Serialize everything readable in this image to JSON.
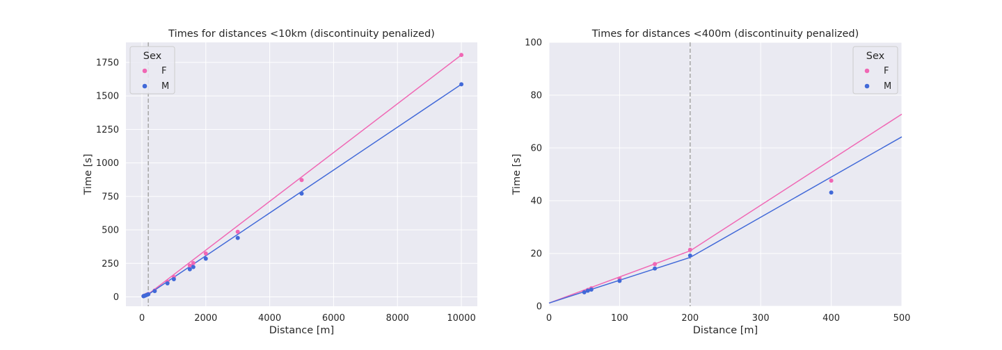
{
  "colors": {
    "F": "#f067b4",
    "M": "#4169d8"
  },
  "chart_data": [
    {
      "type": "scatter",
      "title": "Times for distances <10km (discontinuity penalized)",
      "xlabel": "Distance [m]",
      "ylabel": "Time [s]",
      "xlim": [
        -500,
        10500
      ],
      "ylim": [
        -70,
        1900
      ],
      "xticks": [
        0,
        2000,
        4000,
        6000,
        8000,
        10000
      ],
      "yticks": [
        0,
        250,
        500,
        750,
        1000,
        1250,
        1500,
        1750
      ],
      "vline_x": 200,
      "legend": {
        "title": "Sex",
        "entries": [
          "F",
          "M"
        ],
        "position": "top-left"
      },
      "series": [
        {
          "name": "F",
          "points": [
            [
              50,
              5.5
            ],
            [
              55,
              6.2
            ],
            [
              60,
              6.8
            ],
            [
              100,
              10.5
            ],
            [
              150,
              16
            ],
            [
              200,
              21.4
            ],
            [
              400,
              47.6
            ],
            [
              800,
              113
            ],
            [
              1000,
              148
            ],
            [
              1500,
              233
            ],
            [
              1609,
              252
            ],
            [
              2000,
              324
            ],
            [
              3000,
              486
            ],
            [
              5000,
              872
            ],
            [
              10000,
              1806
            ]
          ],
          "line": [
            [
              0,
              1.2
            ],
            [
              200,
              21
            ],
            [
              10000,
              1806
            ]
          ]
        },
        {
          "name": "M",
          "points": [
            [
              50,
              5.3
            ],
            [
              55,
              5.9
            ],
            [
              60,
              6.3
            ],
            [
              100,
              9.6
            ],
            [
              150,
              14.3
            ],
            [
              200,
              19.2
            ],
            [
              400,
              43.1
            ],
            [
              800,
              101
            ],
            [
              1000,
              132
            ],
            [
              1500,
              206
            ],
            [
              1609,
              223
            ],
            [
              2000,
              285
            ],
            [
              3000,
              440
            ],
            [
              5000,
              771
            ],
            [
              10000,
              1587
            ]
          ],
          "line": [
            [
              0,
              1.2
            ],
            [
              200,
              18.5
            ],
            [
              10000,
              1587
            ]
          ]
        }
      ]
    },
    {
      "type": "scatter",
      "title": "Times for distances <400m (discontinuity penalized)",
      "xlabel": "Distance [m]",
      "ylabel": "Time [s]",
      "xlim": [
        0,
        500
      ],
      "ylim": [
        0,
        100
      ],
      "xticks": [
        0,
        100,
        200,
        300,
        400,
        500
      ],
      "yticks": [
        0,
        20,
        40,
        60,
        80,
        100
      ],
      "vline_x": 200,
      "legend": {
        "title": "Sex",
        "entries": [
          "F",
          "M"
        ],
        "position": "top-right"
      },
      "series": [
        {
          "name": "F",
          "points": [
            [
              50,
              5.5
            ],
            [
              55,
              6.2
            ],
            [
              60,
              6.8
            ],
            [
              100,
              10.5
            ],
            [
              150,
              16
            ],
            [
              200,
              21.4
            ],
            [
              400,
              47.6
            ]
          ],
          "line": [
            [
              0,
              1.2
            ],
            [
              200,
              21
            ],
            [
              500,
              72.8
            ]
          ]
        },
        {
          "name": "M",
          "points": [
            [
              50,
              5.3
            ],
            [
              55,
              5.9
            ],
            [
              60,
              6.3
            ],
            [
              100,
              9.6
            ],
            [
              150,
              14.3
            ],
            [
              200,
              19.2
            ],
            [
              400,
              43.1
            ]
          ],
          "line": [
            [
              0,
              1.2
            ],
            [
              200,
              18.5
            ],
            [
              500,
              64.2
            ]
          ]
        }
      ]
    }
  ]
}
